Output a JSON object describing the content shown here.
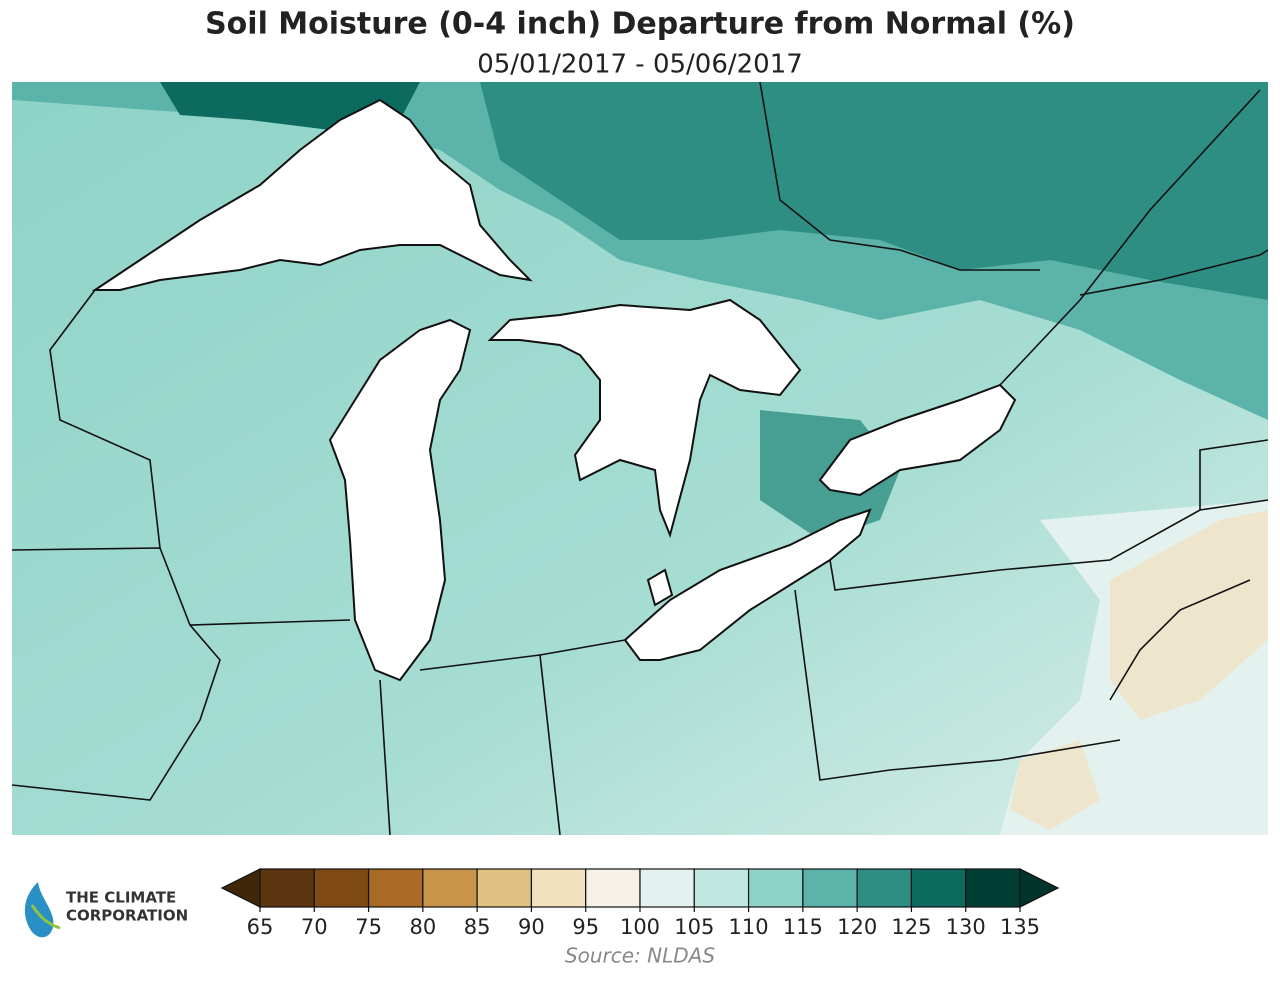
{
  "title": "Soil Moisture (0-4 inch) Departure from Normal (%)",
  "subtitle": "05/01/2017 - 05/06/2017",
  "legend": {
    "ticks": [
      65,
      70,
      75,
      80,
      85,
      90,
      95,
      100,
      105,
      110,
      115,
      120,
      125,
      130,
      135
    ],
    "colors": [
      "#5a3510",
      "#7f4a14",
      "#a86a25",
      "#c9954a",
      "#dfc283",
      "#f1e1bd",
      "#f6f1e6",
      "#e4f2ef",
      "#c0e8e1",
      "#8fd3c7",
      "#5bb3a9",
      "#2f8e83",
      "#0d6a5e",
      "#013f35"
    ],
    "extend_colors": [
      "#3f2609",
      "#01352c"
    ]
  },
  "source": "Source: NLDAS",
  "logo": {
    "line1": "THE CLIMATE",
    "line2": "CORPORATION"
  }
}
